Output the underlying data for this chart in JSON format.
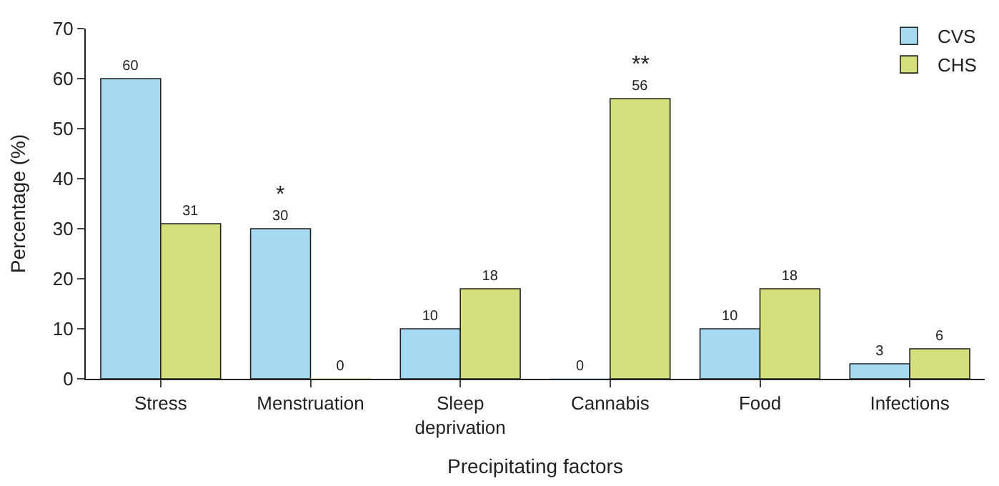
{
  "chart_data": {
    "type": "bar",
    "xlabel": "Precipitating factors",
    "ylabel": "Percentage (%)",
    "categories": [
      "Stress",
      "Menstruation",
      "Sleep\ndeprivation",
      "Cannabis",
      "Food",
      "Infections"
    ],
    "series": [
      {
        "name": "CVS",
        "color": "#a6d9f2",
        "values": [
          60,
          30,
          10,
          0,
          10,
          3
        ]
      },
      {
        "name": "CHS",
        "color": "#d5e07c",
        "values": [
          31,
          0,
          18,
          56,
          18,
          6
        ]
      }
    ],
    "ylim": [
      0,
      70
    ],
    "yticks": [
      0,
      10,
      20,
      30,
      40,
      50,
      60,
      70
    ],
    "data_labels": true,
    "legend": "top right",
    "annotations": [
      {
        "text": "*",
        "x": "Menstruation",
        "y": 30
      },
      {
        "text": "**",
        "x": "Cannabis",
        "y": 56
      }
    ]
  }
}
